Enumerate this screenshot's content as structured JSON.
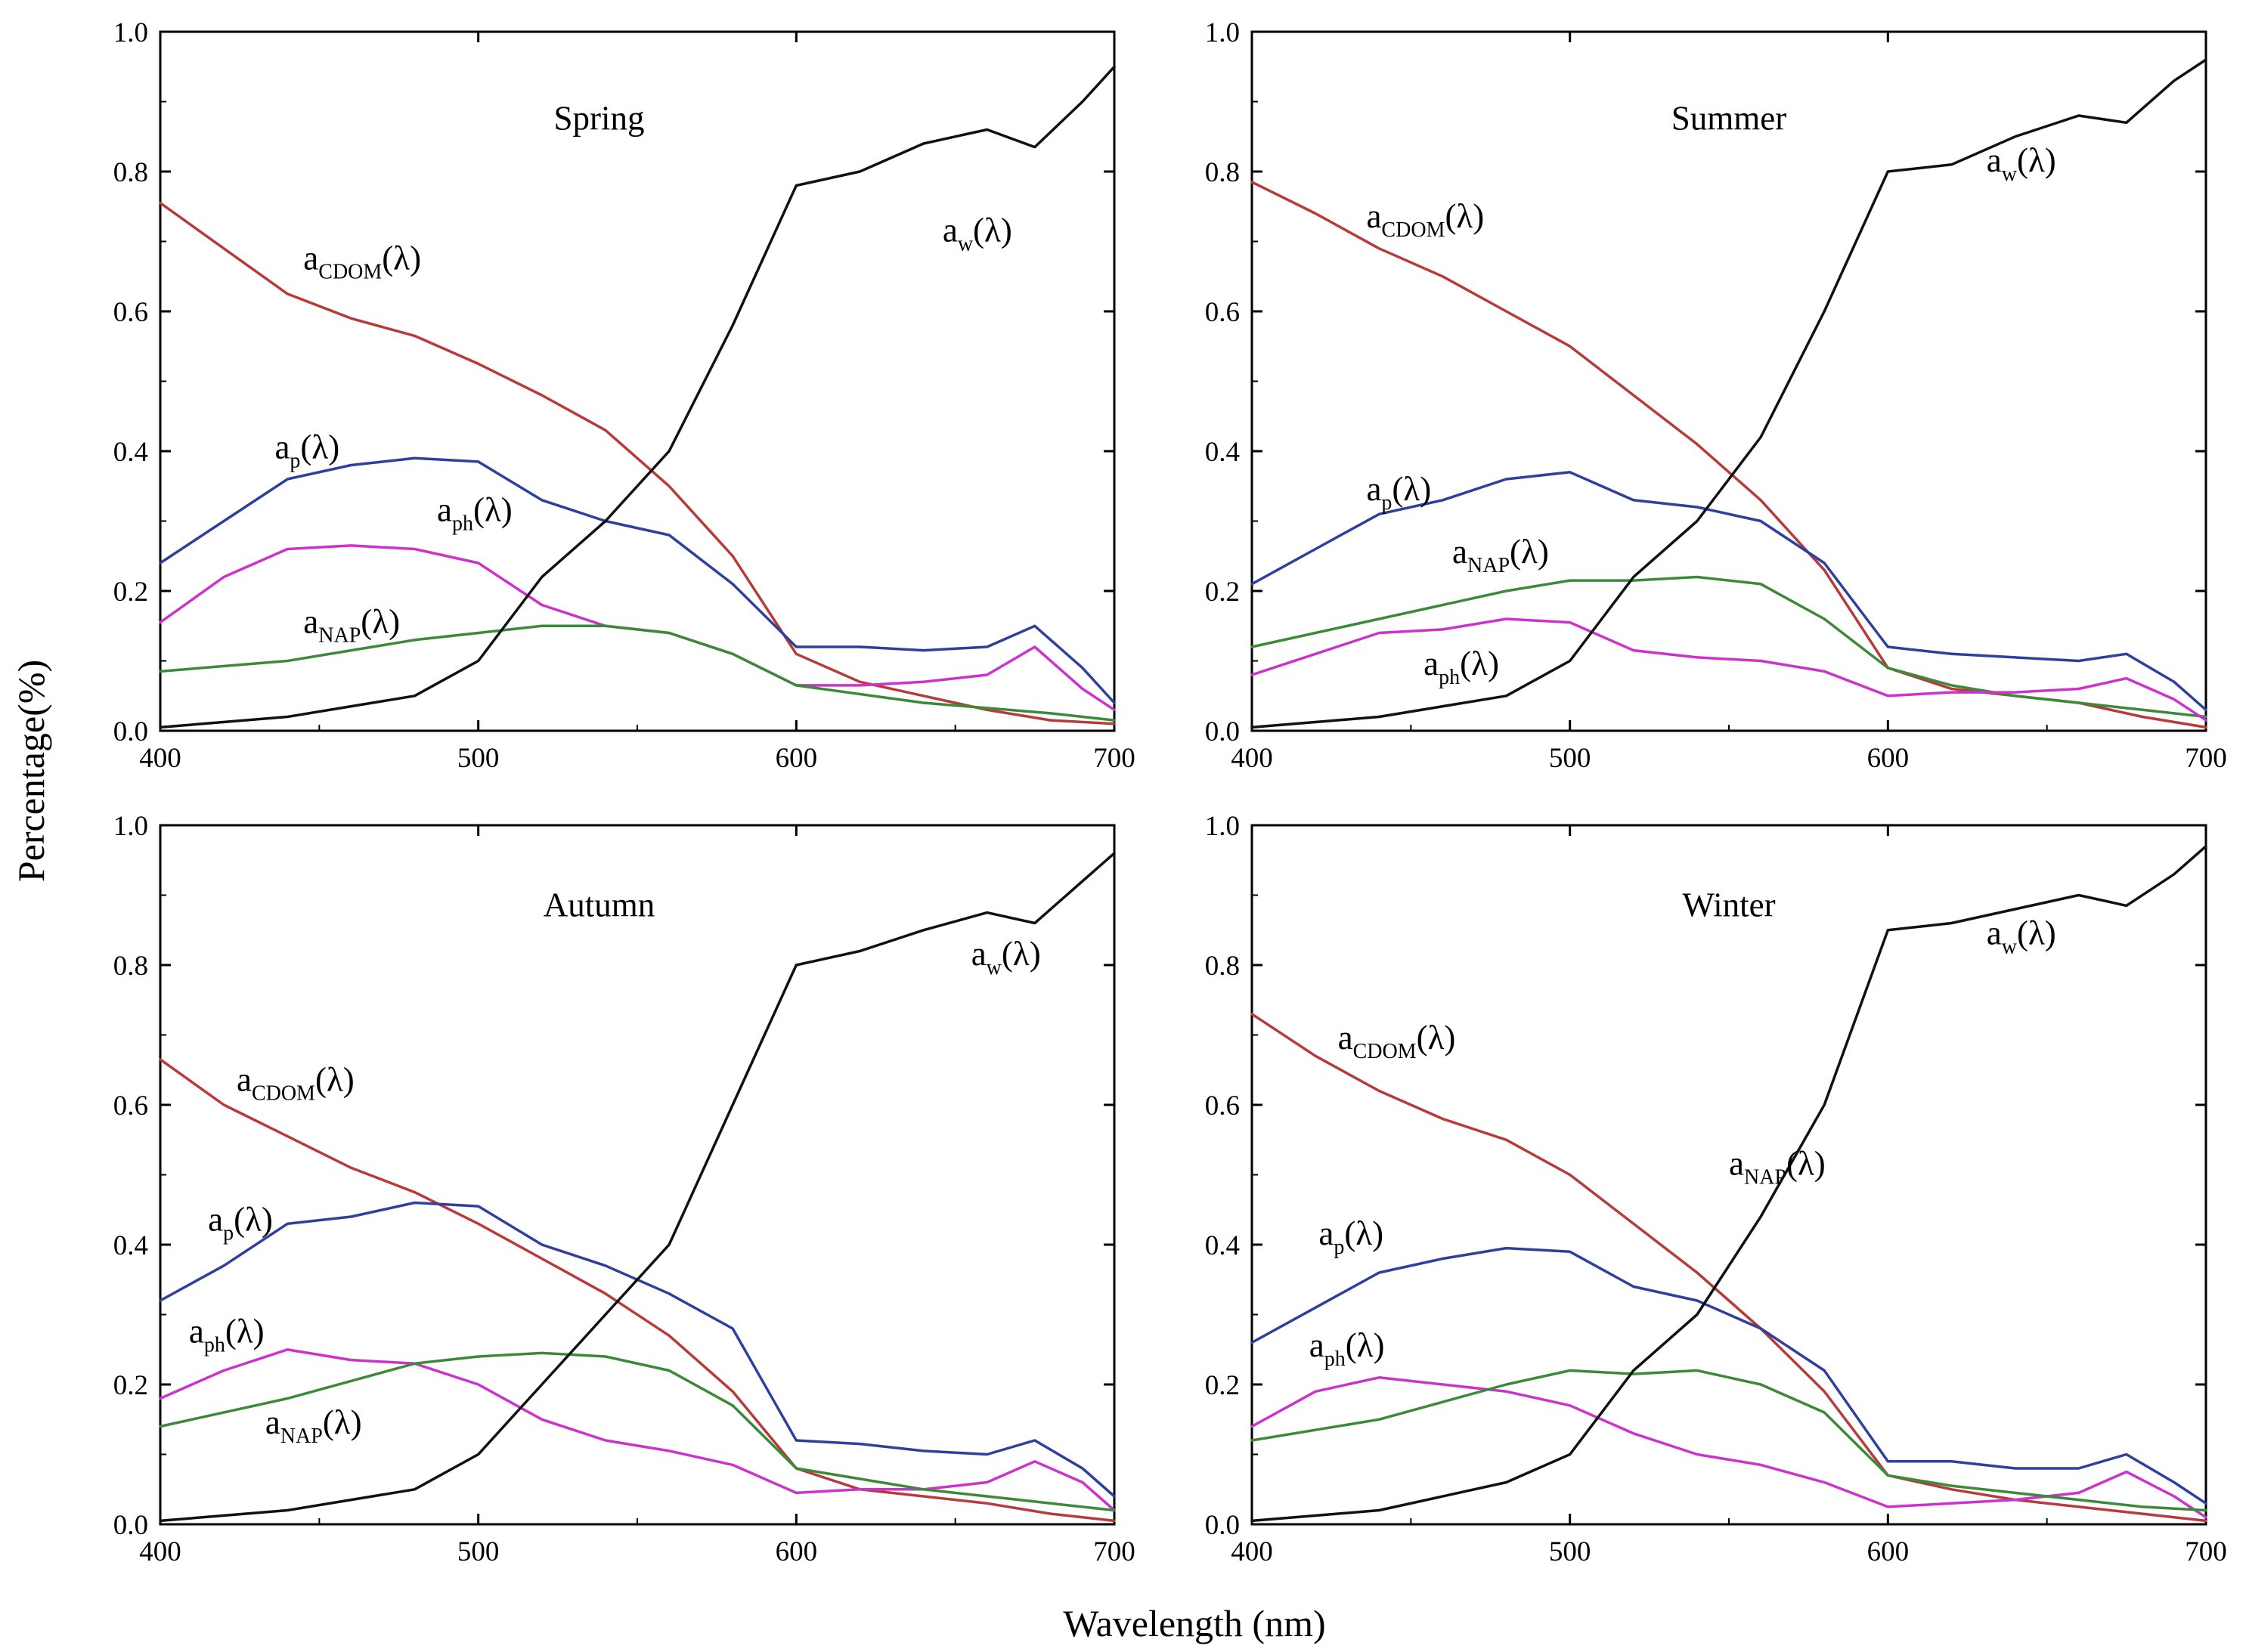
{
  "figure": {
    "xlabel": "Wavelength (nm)",
    "ylabel": "Percentage(%)"
  },
  "chart_data": [
    {
      "type": "line",
      "title": "Spring",
      "xlim": [
        400,
        700
      ],
      "ylim": [
        0.0,
        1.0
      ],
      "xticks": [
        "400",
        "500",
        "600",
        "700"
      ],
      "yticks": [
        "0.0",
        "0.2",
        "0.4",
        "0.6",
        "0.8",
        "1.0"
      ],
      "series": [
        {
          "name": "a_CDOM(λ)",
          "base": "a",
          "sub": "CDOM",
          "color": "#b83a3a",
          "x": [
            400,
            420,
            440,
            460,
            480,
            500,
            520,
            540,
            560,
            580,
            600,
            620,
            640,
            660,
            680,
            700
          ],
          "y": [
            0.755,
            0.69,
            0.625,
            0.59,
            0.565,
            0.525,
            0.48,
            0.43,
            0.35,
            0.25,
            0.11,
            0.07,
            0.05,
            0.03,
            0.015,
            0.01
          ]
        },
        {
          "name": "a_p(λ)",
          "base": "a",
          "sub": "p",
          "color": "#2f3f9e",
          "x": [
            400,
            420,
            440,
            460,
            480,
            500,
            520,
            540,
            560,
            580,
            600,
            620,
            640,
            660,
            675,
            690,
            700
          ],
          "y": [
            0.24,
            0.3,
            0.36,
            0.38,
            0.39,
            0.385,
            0.33,
            0.3,
            0.28,
            0.21,
            0.12,
            0.12,
            0.115,
            0.12,
            0.15,
            0.09,
            0.04
          ]
        },
        {
          "name": "a_ph(λ)",
          "base": "a",
          "sub": "ph",
          "color": "#cc33cc",
          "x": [
            400,
            420,
            440,
            460,
            480,
            500,
            520,
            540,
            560,
            580,
            600,
            620,
            640,
            660,
            675,
            690,
            700
          ],
          "y": [
            0.155,
            0.22,
            0.26,
            0.265,
            0.26,
            0.24,
            0.18,
            0.15,
            0.14,
            0.11,
            0.065,
            0.065,
            0.07,
            0.08,
            0.12,
            0.06,
            0.03
          ]
        },
        {
          "name": "a_NAP(λ)",
          "base": "a",
          "sub": "NAP",
          "color": "#3a8a3a",
          "x": [
            400,
            440,
            480,
            520,
            540,
            560,
            580,
            600,
            640,
            680,
            700
          ],
          "y": [
            0.085,
            0.1,
            0.13,
            0.15,
            0.15,
            0.14,
            0.11,
            0.065,
            0.04,
            0.025,
            0.015
          ]
        },
        {
          "name": "a_w(λ)",
          "base": "a",
          "sub": "w",
          "color": "#111111",
          "x": [
            400,
            440,
            480,
            500,
            520,
            540,
            560,
            580,
            600,
            620,
            640,
            660,
            675,
            690,
            700
          ],
          "y": [
            0.005,
            0.02,
            0.05,
            0.1,
            0.22,
            0.3,
            0.4,
            0.58,
            0.78,
            0.8,
            0.84,
            0.86,
            0.835,
            0.9,
            0.95
          ]
        }
      ]
    },
    {
      "type": "line",
      "title": "Summer",
      "xlim": [
        400,
        700
      ],
      "ylim": [
        0.0,
        1.0
      ],
      "xticks": [
        "400",
        "500",
        "600",
        "700"
      ],
      "yticks": [
        "0.0",
        "0.2",
        "0.4",
        "0.6",
        "0.8",
        "1.0"
      ],
      "series": [
        {
          "name": "a_CDOM(λ)",
          "base": "a",
          "sub": "CDOM",
          "color": "#b83a3a",
          "x": [
            400,
            420,
            440,
            460,
            480,
            500,
            520,
            540,
            560,
            580,
            600,
            620,
            640,
            660,
            680,
            700
          ],
          "y": [
            0.785,
            0.74,
            0.69,
            0.65,
            0.6,
            0.55,
            0.48,
            0.41,
            0.33,
            0.23,
            0.09,
            0.06,
            0.05,
            0.04,
            0.02,
            0.005
          ]
        },
        {
          "name": "a_p(λ)",
          "base": "a",
          "sub": "p",
          "color": "#2f3f9e",
          "x": [
            400,
            420,
            440,
            460,
            480,
            500,
            520,
            540,
            560,
            580,
            600,
            620,
            640,
            660,
            675,
            690,
            700
          ],
          "y": [
            0.21,
            0.26,
            0.31,
            0.33,
            0.36,
            0.37,
            0.33,
            0.32,
            0.3,
            0.24,
            0.12,
            0.11,
            0.105,
            0.1,
            0.11,
            0.07,
            0.03
          ]
        },
        {
          "name": "a_NAP(λ)",
          "base": "a",
          "sub": "NAP",
          "color": "#3a8a3a",
          "x": [
            400,
            440,
            480,
            500,
            520,
            540,
            560,
            580,
            600,
            620,
            640,
            660,
            680,
            700
          ],
          "y": [
            0.12,
            0.16,
            0.2,
            0.215,
            0.215,
            0.22,
            0.21,
            0.16,
            0.09,
            0.065,
            0.05,
            0.04,
            0.03,
            0.02
          ]
        },
        {
          "name": "a_ph(λ)",
          "base": "a",
          "sub": "ph",
          "color": "#cc33cc",
          "x": [
            400,
            420,
            440,
            460,
            480,
            500,
            520,
            540,
            560,
            580,
            600,
            620,
            640,
            660,
            675,
            690,
            700
          ],
          "y": [
            0.08,
            0.11,
            0.14,
            0.145,
            0.16,
            0.155,
            0.115,
            0.105,
            0.1,
            0.085,
            0.05,
            0.055,
            0.055,
            0.06,
            0.075,
            0.045,
            0.015
          ]
        },
        {
          "name": "a_w(λ)",
          "base": "a",
          "sub": "w",
          "color": "#111111",
          "x": [
            400,
            440,
            480,
            500,
            520,
            540,
            560,
            580,
            600,
            620,
            640,
            660,
            675,
            690,
            700
          ],
          "y": [
            0.005,
            0.02,
            0.05,
            0.1,
            0.22,
            0.3,
            0.42,
            0.6,
            0.8,
            0.81,
            0.85,
            0.88,
            0.87,
            0.93,
            0.96
          ]
        }
      ]
    },
    {
      "type": "line",
      "title": "Autumn",
      "xlim": [
        400,
        700
      ],
      "ylim": [
        0.0,
        1.0
      ],
      "xticks": [
        "400",
        "500",
        "600",
        "700"
      ],
      "yticks": [
        "0.0",
        "0.2",
        "0.4",
        "0.6",
        "0.8",
        "1.0"
      ],
      "series": [
        {
          "name": "a_CDOM(λ)",
          "base": "a",
          "sub": "CDOM",
          "color": "#b83a3a",
          "x": [
            400,
            420,
            440,
            460,
            480,
            500,
            520,
            540,
            560,
            580,
            600,
            620,
            640,
            660,
            680,
            700
          ],
          "y": [
            0.665,
            0.6,
            0.555,
            0.51,
            0.475,
            0.43,
            0.38,
            0.33,
            0.27,
            0.19,
            0.08,
            0.05,
            0.04,
            0.03,
            0.015,
            0.005
          ]
        },
        {
          "name": "a_p(λ)",
          "base": "a",
          "sub": "p",
          "color": "#2f3f9e",
          "x": [
            400,
            420,
            440,
            460,
            480,
            500,
            520,
            540,
            560,
            580,
            600,
            620,
            640,
            660,
            675,
            690,
            700
          ],
          "y": [
            0.32,
            0.37,
            0.43,
            0.44,
            0.46,
            0.455,
            0.4,
            0.37,
            0.33,
            0.28,
            0.12,
            0.115,
            0.105,
            0.1,
            0.12,
            0.08,
            0.04
          ]
        },
        {
          "name": "a_ph(λ)",
          "base": "a",
          "sub": "ph",
          "color": "#cc33cc",
          "x": [
            400,
            420,
            440,
            460,
            480,
            500,
            520,
            540,
            560,
            580,
            600,
            620,
            640,
            660,
            675,
            690,
            700
          ],
          "y": [
            0.18,
            0.22,
            0.25,
            0.235,
            0.23,
            0.2,
            0.15,
            0.12,
            0.105,
            0.085,
            0.045,
            0.05,
            0.05,
            0.06,
            0.09,
            0.06,
            0.02
          ]
        },
        {
          "name": "a_NAP(λ)",
          "base": "a",
          "sub": "NAP",
          "color": "#3a8a3a",
          "x": [
            400,
            440,
            480,
            500,
            520,
            540,
            560,
            580,
            600,
            620,
            640,
            660,
            680,
            700
          ],
          "y": [
            0.14,
            0.18,
            0.23,
            0.24,
            0.245,
            0.24,
            0.22,
            0.17,
            0.08,
            0.065,
            0.05,
            0.04,
            0.03,
            0.02
          ]
        },
        {
          "name": "a_w(λ)",
          "base": "a",
          "sub": "w",
          "color": "#111111",
          "x": [
            400,
            440,
            480,
            500,
            520,
            540,
            560,
            580,
            600,
            620,
            640,
            660,
            675,
            690,
            700
          ],
          "y": [
            0.005,
            0.02,
            0.05,
            0.1,
            0.2,
            0.3,
            0.4,
            0.6,
            0.8,
            0.82,
            0.85,
            0.875,
            0.86,
            0.92,
            0.96
          ]
        }
      ]
    },
    {
      "type": "line",
      "title": "Winter",
      "xlim": [
        400,
        700
      ],
      "ylim": [
        0.0,
        1.0
      ],
      "xticks": [
        "400",
        "500",
        "600",
        "700"
      ],
      "yticks": [
        "0.0",
        "0.2",
        "0.4",
        "0.6",
        "0.8",
        "1.0"
      ],
      "series": [
        {
          "name": "a_CDOM(λ)",
          "base": "a",
          "sub": "CDOM",
          "color": "#b83a3a",
          "x": [
            400,
            420,
            440,
            460,
            480,
            500,
            520,
            540,
            560,
            580,
            600,
            620,
            640,
            660,
            680,
            700
          ],
          "y": [
            0.73,
            0.67,
            0.62,
            0.58,
            0.55,
            0.5,
            0.43,
            0.36,
            0.28,
            0.19,
            0.07,
            0.05,
            0.035,
            0.025,
            0.015,
            0.005
          ]
        },
        {
          "name": "a_p(λ)",
          "base": "a",
          "sub": "p",
          "color": "#2f3f9e",
          "x": [
            400,
            420,
            440,
            460,
            480,
            500,
            520,
            540,
            560,
            580,
            600,
            620,
            640,
            660,
            675,
            690,
            700
          ],
          "y": [
            0.26,
            0.31,
            0.36,
            0.38,
            0.395,
            0.39,
            0.34,
            0.32,
            0.28,
            0.22,
            0.09,
            0.09,
            0.08,
            0.08,
            0.1,
            0.06,
            0.03
          ]
        },
        {
          "name": "a_ph(λ)",
          "base": "a",
          "sub": "ph",
          "color": "#cc33cc",
          "x": [
            400,
            420,
            440,
            460,
            480,
            500,
            520,
            540,
            560,
            580,
            600,
            620,
            640,
            660,
            675,
            690,
            700
          ],
          "y": [
            0.14,
            0.19,
            0.21,
            0.2,
            0.19,
            0.17,
            0.13,
            0.1,
            0.085,
            0.06,
            0.025,
            0.03,
            0.035,
            0.045,
            0.075,
            0.04,
            0.01
          ]
        },
        {
          "name": "a_NAP(λ)",
          "base": "a",
          "sub": "NAP",
          "color": "#3a8a3a",
          "x": [
            400,
            440,
            480,
            500,
            520,
            540,
            560,
            580,
            600,
            620,
            640,
            660,
            680,
            700
          ],
          "y": [
            0.12,
            0.15,
            0.2,
            0.22,
            0.215,
            0.22,
            0.2,
            0.16,
            0.07,
            0.055,
            0.045,
            0.035,
            0.025,
            0.02
          ]
        },
        {
          "name": "a_w(λ)",
          "base": "a",
          "sub": "w",
          "color": "#111111",
          "x": [
            400,
            440,
            480,
            500,
            520,
            540,
            560,
            580,
            600,
            620,
            640,
            660,
            675,
            690,
            700
          ],
          "y": [
            0.005,
            0.02,
            0.06,
            0.1,
            0.22,
            0.3,
            0.44,
            0.6,
            0.85,
            0.86,
            0.88,
            0.9,
            0.885,
            0.93,
            0.97
          ]
        }
      ]
    }
  ]
}
